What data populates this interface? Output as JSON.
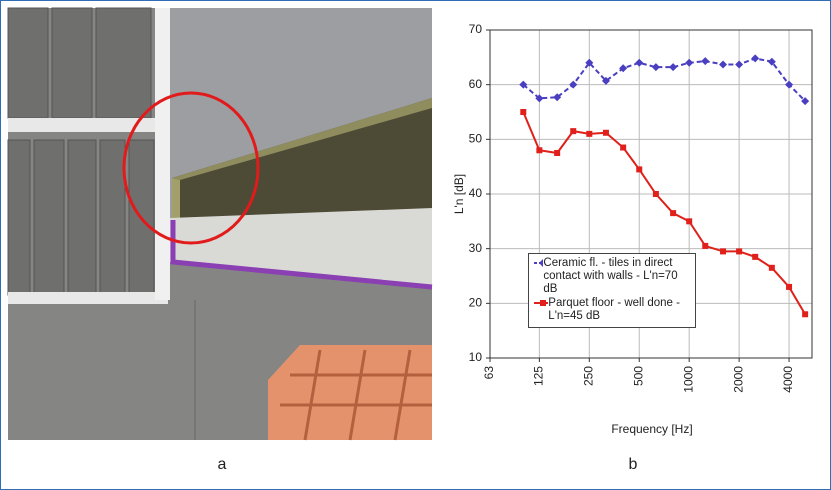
{
  "panel_labels": [
    "a",
    "b"
  ],
  "chart_data": {
    "type": "line",
    "x_label": "Frequency [Hz]",
    "y_label": "L'n [dB]",
    "x": [
      100,
      125,
      160,
      200,
      250,
      315,
      400,
      500,
      630,
      800,
      1000,
      1250,
      1600,
      2000,
      2500,
      3150,
      4000,
      5000
    ],
    "series": [
      {
        "name": "Ceramic fl. - tiles in direct contact with walls - L'n=70 dB",
        "color": "#4a3fc0",
        "marker": "diamond",
        "dash": true,
        "values": [
          60,
          57.5,
          57.7,
          60,
          64,
          60.7,
          63,
          64,
          63.2,
          63.2,
          64,
          64.3,
          63.7,
          63.7,
          64.8,
          64.2,
          60,
          57
        ]
      },
      {
        "name": "Parquet floor - well done -  L'n=45 dB",
        "color": "#e0201a",
        "marker": "square",
        "dash": false,
        "values": [
          55,
          48,
          47.5,
          51.5,
          51,
          51.2,
          48.5,
          44.5,
          40,
          36.5,
          35,
          30.5,
          29.5,
          29.5,
          28.5,
          26.5,
          23,
          18
        ]
      }
    ],
    "xscale": "log",
    "xlim": [
      63,
      5500
    ],
    "xticks": [
      63,
      125,
      250,
      500,
      1000,
      2000,
      4000
    ],
    "ylim": [
      10,
      70
    ],
    "yticks": [
      10,
      20,
      30,
      40,
      50,
      60,
      70
    ],
    "grid": true,
    "legend": "lower left"
  }
}
